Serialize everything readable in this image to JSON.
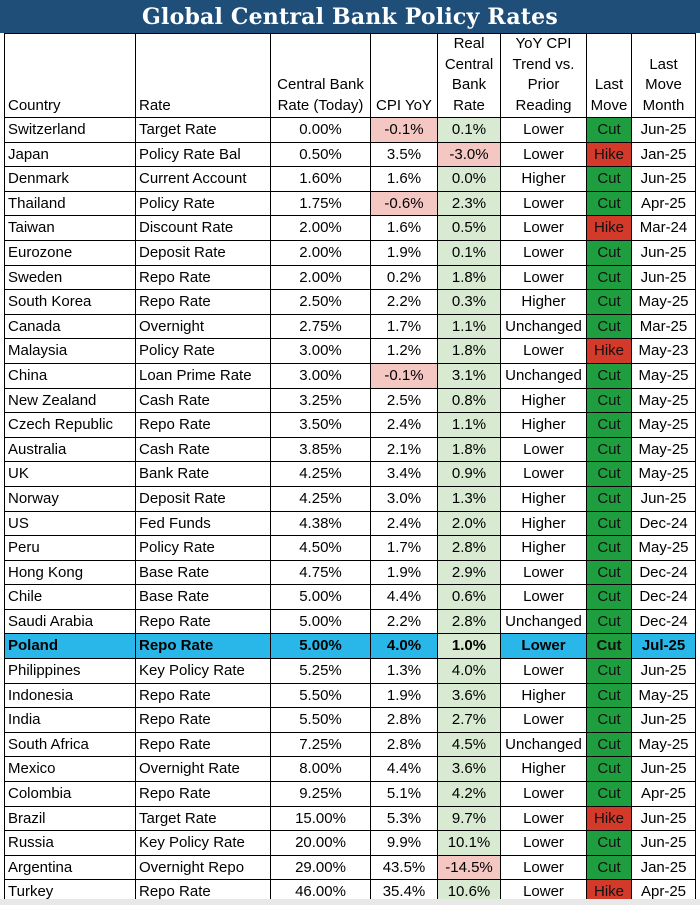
{
  "title": "Global Central Bank Policy Rates",
  "headers": {
    "country": "Country",
    "rate": "Rate",
    "cb_rate": "Central Bank Rate (Today)",
    "cpi": "CPI YoY",
    "real": "Real Central Bank Rate",
    "trend": "YoY CPI Trend vs. Prior Reading",
    "last_move": "Last Move",
    "last_move_month": "Last Move Month"
  },
  "colors": {
    "title_bg": "#1f4e79",
    "negative_real": "#f4c7c3",
    "positive_real": "#d9ead3",
    "cut": "#1e9e3e",
    "hike": "#d33a2a",
    "highlight_row": "#29b6e8"
  },
  "highlighted_country": "Poland",
  "rows": [
    {
      "country": "Switzerland",
      "rate": "Target Rate",
      "cb_rate": "0.00%",
      "cpi": "-0.1%",
      "real": "0.1%",
      "trend": "Lower",
      "move": "Cut",
      "month": "Jun-25"
    },
    {
      "country": "Japan",
      "rate": "Policy Rate Bal",
      "cb_rate": "0.50%",
      "cpi": "3.5%",
      "real": "-3.0%",
      "trend": "Lower",
      "move": "Hike",
      "month": "Jan-25"
    },
    {
      "country": "Denmark",
      "rate": "Current Account",
      "cb_rate": "1.60%",
      "cpi": "1.6%",
      "real": "0.0%",
      "trend": "Higher",
      "move": "Cut",
      "month": "Jun-25"
    },
    {
      "country": "Thailand",
      "rate": "Policy Rate",
      "cb_rate": "1.75%",
      "cpi": "-0.6%",
      "real": "2.3%",
      "trend": "Lower",
      "move": "Cut",
      "month": "Apr-25"
    },
    {
      "country": "Taiwan",
      "rate": "Discount Rate",
      "cb_rate": "2.00%",
      "cpi": "1.6%",
      "real": "0.5%",
      "trend": "Lower",
      "move": "Hike",
      "month": "Mar-24"
    },
    {
      "country": "Eurozone",
      "rate": "Deposit Rate",
      "cb_rate": "2.00%",
      "cpi": "1.9%",
      "real": "0.1%",
      "trend": "Lower",
      "move": "Cut",
      "month": "Jun-25"
    },
    {
      "country": "Sweden",
      "rate": "Repo Rate",
      "cb_rate": "2.00%",
      "cpi": "0.2%",
      "real": "1.8%",
      "trend": "Lower",
      "move": "Cut",
      "month": "Jun-25"
    },
    {
      "country": "South Korea",
      "rate": "Repo Rate",
      "cb_rate": "2.50%",
      "cpi": "2.2%",
      "real": "0.3%",
      "trend": "Higher",
      "move": "Cut",
      "month": "May-25"
    },
    {
      "country": "Canada",
      "rate": "Overnight",
      "cb_rate": "2.75%",
      "cpi": "1.7%",
      "real": "1.1%",
      "trend": "Unchanged",
      "move": "Cut",
      "month": "Mar-25"
    },
    {
      "country": "Malaysia",
      "rate": "Policy Rate",
      "cb_rate": "3.00%",
      "cpi": "1.2%",
      "real": "1.8%",
      "trend": "Lower",
      "move": "Hike",
      "month": "May-23"
    },
    {
      "country": "China",
      "rate": "Loan Prime Rate",
      "cb_rate": "3.00%",
      "cpi": "-0.1%",
      "real": "3.1%",
      "trend": "Unchanged",
      "move": "Cut",
      "month": "May-25"
    },
    {
      "country": "New Zealand",
      "rate": "Cash Rate",
      "cb_rate": "3.25%",
      "cpi": "2.5%",
      "real": "0.8%",
      "trend": "Higher",
      "move": "Cut",
      "month": "May-25"
    },
    {
      "country": "Czech Republic",
      "rate": "Repo Rate",
      "cb_rate": "3.50%",
      "cpi": "2.4%",
      "real": "1.1%",
      "trend": "Higher",
      "move": "Cut",
      "month": "May-25"
    },
    {
      "country": "Australia",
      "rate": "Cash Rate",
      "cb_rate": "3.85%",
      "cpi": "2.1%",
      "real": "1.8%",
      "trend": "Lower",
      "move": "Cut",
      "month": "May-25"
    },
    {
      "country": "UK",
      "rate": "Bank Rate",
      "cb_rate": "4.25%",
      "cpi": "3.4%",
      "real": "0.9%",
      "trend": "Lower",
      "move": "Cut",
      "month": "May-25"
    },
    {
      "country": "Norway",
      "rate": "Deposit Rate",
      "cb_rate": "4.25%",
      "cpi": "3.0%",
      "real": "1.3%",
      "trend": "Higher",
      "move": "Cut",
      "month": "Jun-25"
    },
    {
      "country": "US",
      "rate": "Fed Funds",
      "cb_rate": "4.38%",
      "cpi": "2.4%",
      "real": "2.0%",
      "trend": "Higher",
      "move": "Cut",
      "month": "Dec-24"
    },
    {
      "country": "Peru",
      "rate": "Policy Rate",
      "cb_rate": "4.50%",
      "cpi": "1.7%",
      "real": "2.8%",
      "trend": "Higher",
      "move": "Cut",
      "month": "May-25"
    },
    {
      "country": "Hong Kong",
      "rate": "Base Rate",
      "cb_rate": "4.75%",
      "cpi": "1.9%",
      "real": "2.9%",
      "trend": "Lower",
      "move": "Cut",
      "month": "Dec-24"
    },
    {
      "country": "Chile",
      "rate": "Base Rate",
      "cb_rate": "5.00%",
      "cpi": "4.4%",
      "real": "0.6%",
      "trend": "Lower",
      "move": "Cut",
      "month": "Dec-24"
    },
    {
      "country": "Saudi Arabia",
      "rate": "Repo Rate",
      "cb_rate": "5.00%",
      "cpi": "2.2%",
      "real": "2.8%",
      "trend": "Unchanged",
      "move": "Cut",
      "month": "Dec-24"
    },
    {
      "country": "Poland",
      "rate": "Repo Rate",
      "cb_rate": "5.00%",
      "cpi": "4.0%",
      "real": "1.0%",
      "trend": "Lower",
      "move": "Cut",
      "month": "Jul-25"
    },
    {
      "country": "Philippines",
      "rate": "Key Policy Rate",
      "cb_rate": "5.25%",
      "cpi": "1.3%",
      "real": "4.0%",
      "trend": "Lower",
      "move": "Cut",
      "month": "Jun-25"
    },
    {
      "country": "Indonesia",
      "rate": "Repo Rate",
      "cb_rate": "5.50%",
      "cpi": "1.9%",
      "real": "3.6%",
      "trend": "Higher",
      "move": "Cut",
      "month": "May-25"
    },
    {
      "country": "India",
      "rate": "Repo Rate",
      "cb_rate": "5.50%",
      "cpi": "2.8%",
      "real": "2.7%",
      "trend": "Lower",
      "move": "Cut",
      "month": "Jun-25"
    },
    {
      "country": "South Africa",
      "rate": "Repo Rate",
      "cb_rate": "7.25%",
      "cpi": "2.8%",
      "real": "4.5%",
      "trend": "Unchanged",
      "move": "Cut",
      "month": "May-25"
    },
    {
      "country": "Mexico",
      "rate": "Overnight Rate",
      "cb_rate": "8.00%",
      "cpi": "4.4%",
      "real": "3.6%",
      "trend": "Higher",
      "move": "Cut",
      "month": "Jun-25"
    },
    {
      "country": "Colombia",
      "rate": "Repo Rate",
      "cb_rate": "9.25%",
      "cpi": "5.1%",
      "real": "4.2%",
      "trend": "Lower",
      "move": "Cut",
      "month": "Apr-25"
    },
    {
      "country": "Brazil",
      "rate": "Target Rate",
      "cb_rate": "15.00%",
      "cpi": "5.3%",
      "real": "9.7%",
      "trend": "Lower",
      "move": "Hike",
      "month": "Jun-25"
    },
    {
      "country": "Russia",
      "rate": "Key Policy Rate",
      "cb_rate": "20.00%",
      "cpi": "9.9%",
      "real": "10.1%",
      "trend": "Lower",
      "move": "Cut",
      "month": "Jun-25"
    },
    {
      "country": "Argentina",
      "rate": "Overnight Repo",
      "cb_rate": "29.00%",
      "cpi": "43.5%",
      "real": "-14.5%",
      "trend": "Lower",
      "move": "Cut",
      "month": "Jan-25"
    },
    {
      "country": "Turkey",
      "rate": "Repo Rate",
      "cb_rate": "46.00%",
      "cpi": "35.4%",
      "real": "10.6%",
      "trend": "Lower",
      "move": "Hike",
      "month": "Apr-25"
    }
  ]
}
